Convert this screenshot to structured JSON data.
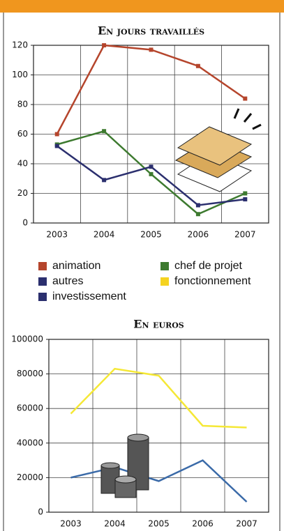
{
  "chart_data": [
    {
      "type": "line",
      "title": "En jours travaillés",
      "categories": [
        "2003",
        "2004",
        "2005",
        "2006",
        "2007"
      ],
      "series": [
        {
          "name": "animation",
          "color": "#b5452c",
          "values": [
            60,
            120,
            117,
            106,
            84
          ]
        },
        {
          "name": "chef de projet",
          "color": "#3d7a2f",
          "values": [
            53,
            62,
            33,
            6,
            20
          ]
        },
        {
          "name": "autres",
          "color": "#2b2f6e",
          "values": [
            52,
            29,
            38,
            12,
            16
          ]
        },
        {
          "name": "fonctionnement",
          "color": "#f5d320",
          "values": [
            null,
            null,
            null,
            null,
            null
          ]
        },
        {
          "name": "investissement",
          "color": "#2b2f6e",
          "values": [
            null,
            null,
            null,
            null,
            null
          ]
        }
      ],
      "ylim": [
        0,
        120
      ],
      "yticks": [
        0,
        20,
        40,
        60,
        80,
        100,
        120
      ],
      "grid": true,
      "markers": true
    },
    {
      "type": "line",
      "title": "En euros",
      "categories": [
        "2003",
        "2004",
        "2005",
        "2006",
        "2007"
      ],
      "series": [
        {
          "color": "#f5e836",
          "values": [
            57000,
            83000,
            79000,
            50000,
            49000
          ]
        },
        {
          "color": "#3a6aa8",
          "values": [
            20000,
            26000,
            18000,
            30000,
            6000
          ]
        }
      ],
      "ylim": [
        0,
        100000
      ],
      "yticks": [
        0,
        20000,
        40000,
        60000,
        80000,
        100000
      ],
      "grid": true,
      "markers": false
    }
  ]
}
